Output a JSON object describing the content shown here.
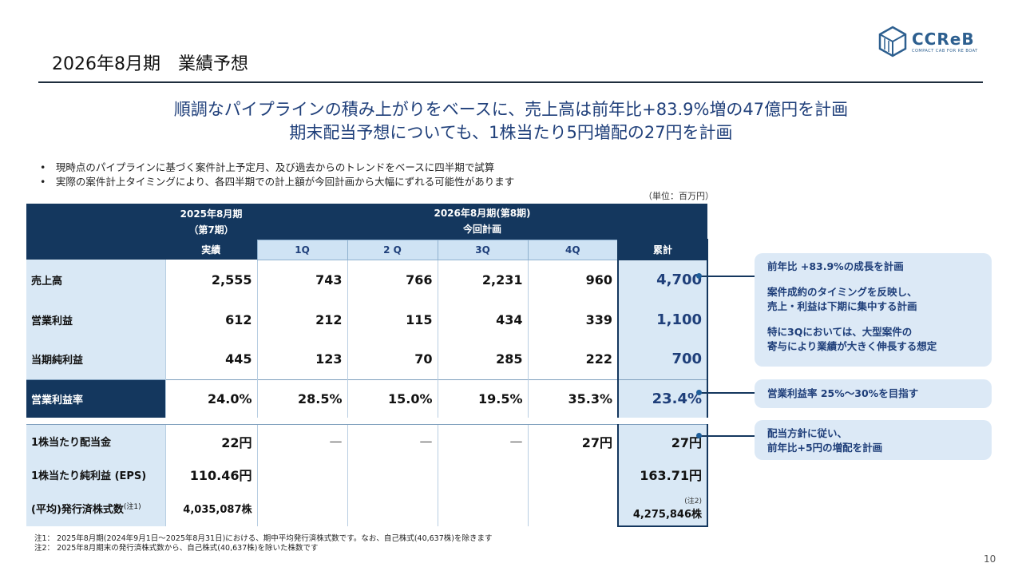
{
  "page": {
    "title": "2026年8月期　業績予想",
    "headline1": "順調なパイプラインの積み上がりをベースに、売上高は前年比+83.9%増の47億円を計画",
    "headline2": "期末配当予想についても、1株当たり5円増配の27円を計画",
    "bullets": [
      "現時点のパイプラインに基づく案件計上予定月、及び過去からのトレンドをベースに四半期で試算",
      "実際の案件計上タイミングにより、各四半期での計上額が今回計画から大幅にずれる可能性があります"
    ],
    "bullet_mark": "•",
    "unit": "（単位：百万円）",
    "page_number": "10"
  },
  "logo": {
    "text": "CCReB",
    "sub": "COMPACT CAB FOR RE BOAT",
    "color": "#2d5f8f"
  },
  "table": {
    "fy2025_line1": "2025年8月期",
    "fy2025_line2": "（第7期）",
    "fy2025_actual": "実績",
    "fy2026_line1": "2026年8月期(第8期)",
    "fy2026_line2": "今回計画",
    "q_labels": [
      "1Q",
      "2 Q",
      "3Q",
      "4Q"
    ],
    "cumulative_label": "累計",
    "rows": {
      "sales": {
        "label": "売上高",
        "actual": "2,555",
        "q": [
          "743",
          "766",
          "2,231",
          "960"
        ],
        "cum": "4,700"
      },
      "op": {
        "label": "営業利益",
        "actual": "612",
        "q": [
          "212",
          "115",
          "434",
          "339"
        ],
        "cum": "1,100"
      },
      "net": {
        "label": "当期純利益",
        "actual": "445",
        "q": [
          "123",
          "70",
          "285",
          "222"
        ],
        "cum": "700"
      },
      "margin": {
        "label": "営業利益率",
        "actual": "24.0%",
        "q": [
          "28.5%",
          "15.0%",
          "19.5%",
          "35.3%"
        ],
        "cum": "23.4%"
      },
      "dps": {
        "label": "1株当たり配当金",
        "actual": "22円",
        "q": [
          "—",
          "—",
          "—",
          "27円"
        ],
        "cum": "27円"
      },
      "eps": {
        "label": "1株当たり純利益 (EPS)",
        "actual": "110.46円",
        "cum": "163.71円"
      },
      "shares": {
        "label": "(平均)発行済株式数",
        "sup": "(注1)",
        "actual": "4,035,087株",
        "cum_note": "(注2)",
        "cum": "4,275,846株"
      }
    }
  },
  "callouts": {
    "c1": [
      "前年比 +83.9%の成長を計画",
      "案件成約のタイミングを反映し、",
      "売上・利益は下期に集中する計画",
      "特に3Qにおいては、大型案件の",
      "寄与により業績が大きく伸長する想定"
    ],
    "c2": "営業利益率 25%～30%を目指す",
    "c3": [
      "配当方針に従い、",
      "前年比+5円の増配を計画"
    ]
  },
  "footnotes": [
    "注1： 2025年8月期(2024年9月1日～2025年8月31日)における、期中平均発行済株式数です。なお、自己株式(40,637株)を除きます",
    "注2： 2025年8月期末の発行済株式数から、自己株式(40,637株)を除いた株数です"
  ],
  "colors": {
    "navy": "#14375e",
    "light_blue": "#d9e8f5",
    "accent_text": "#1f3f7a"
  }
}
